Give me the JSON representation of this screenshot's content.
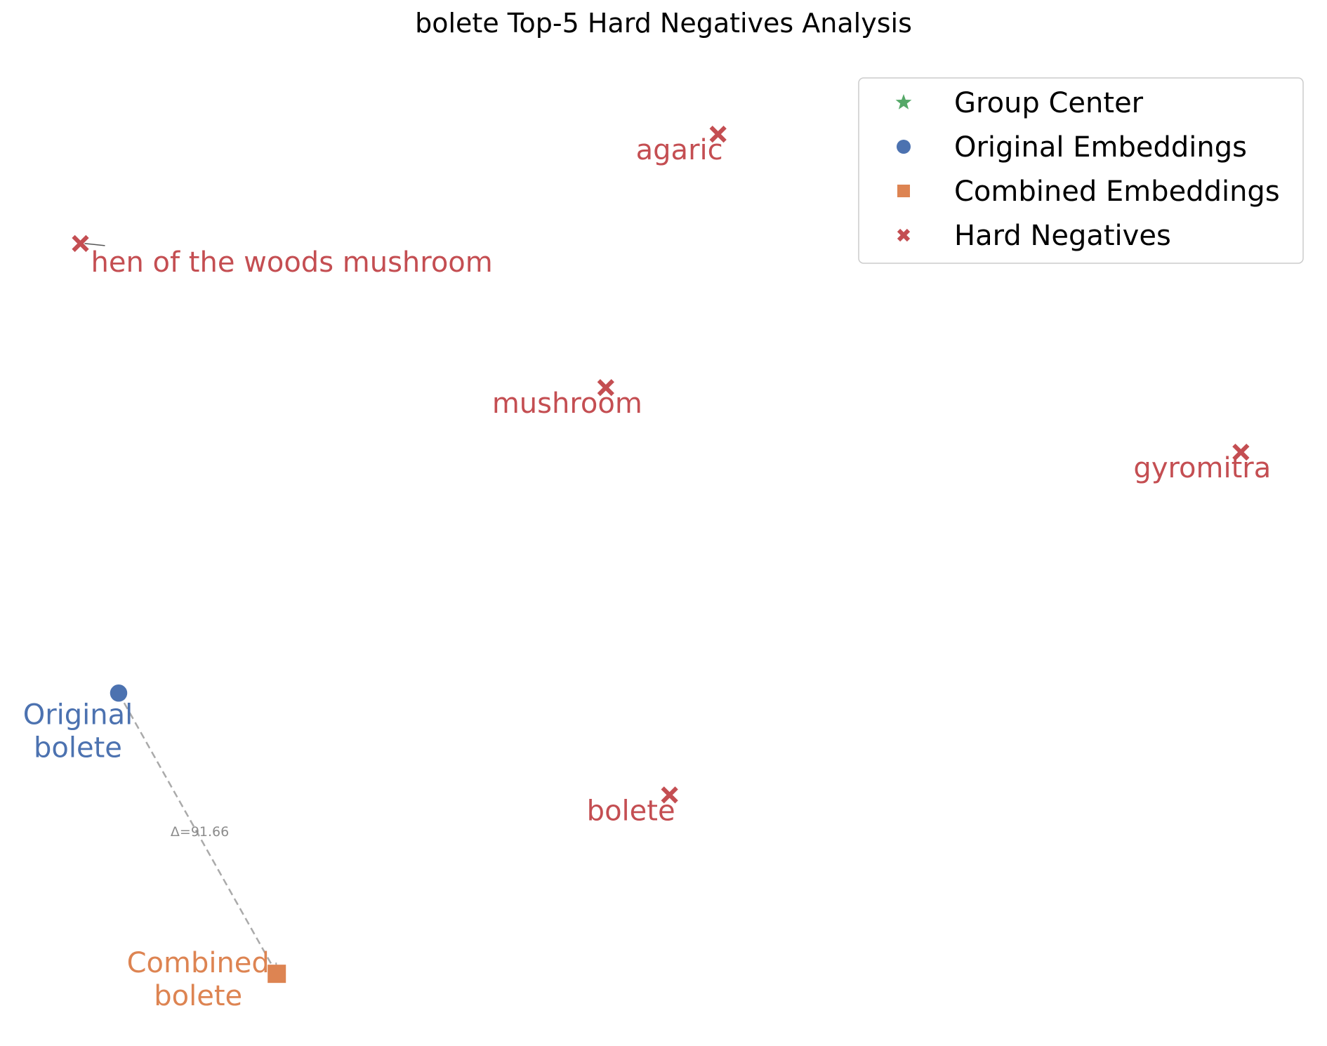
{
  "chart_data": {
    "type": "scatter",
    "title": "bolete Top-5 Hard Negatives Analysis",
    "xlabel": "",
    "ylabel": "",
    "axes_visible": false,
    "grid": false,
    "legend": {
      "placement": "top-right",
      "entries": [
        {
          "key": "group_center",
          "label": "Group Center",
          "marker": "star",
          "color": "#55a868"
        },
        {
          "key": "original",
          "label": "Original Embeddings",
          "marker": "circle",
          "color": "#4c72b0"
        },
        {
          "key": "combined",
          "label": "Combined Embeddings",
          "marker": "square",
          "color": "#dd8452"
        },
        {
          "key": "hard_neg",
          "label": "Hard Negatives",
          "marker": "x",
          "color": "#c44e52"
        }
      ]
    },
    "original": {
      "x": -3.0,
      "y": -10.5,
      "label": [
        "Original",
        "bolete"
      ],
      "color": "#4c72b0"
    },
    "combined": {
      "x": 3.2,
      "y": -21.8,
      "label": [
        "Combined",
        "bolete"
      ],
      "color": "#dd8452"
    },
    "shift": {
      "label": "Δ=91.66"
    },
    "hard_negatives": {
      "color": "#c44e52",
      "points": [
        {
          "name": "agaric",
          "x": 20.5,
          "y": 12.0
        },
        {
          "name": "hen of the woods mushroom",
          "x": -4.5,
          "y": 7.6
        },
        {
          "name": "mushroom",
          "x": 16.1,
          "y": 1.8
        },
        {
          "name": "gyromitra",
          "x": 41.0,
          "y": -0.8
        },
        {
          "name": "bolete",
          "x": 18.6,
          "y": -14.6
        }
      ]
    },
    "xlim": [
      -6.0,
      43.0
    ],
    "ylim": [
      -24.0,
      15.0
    ]
  }
}
